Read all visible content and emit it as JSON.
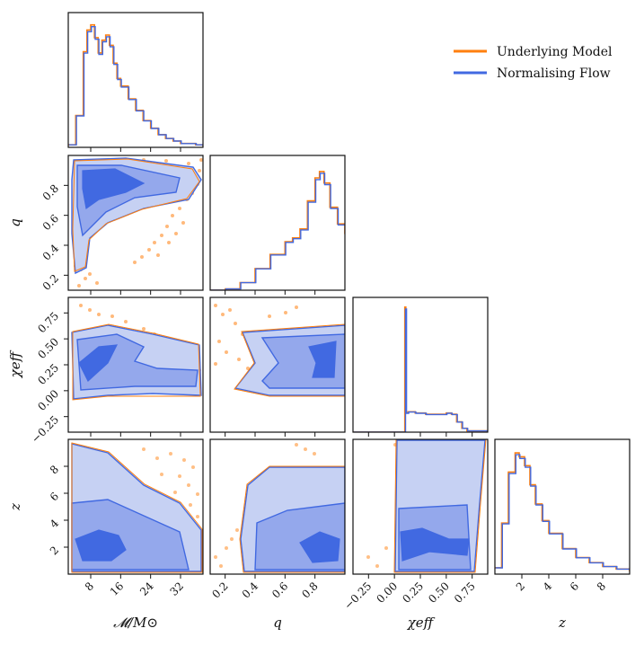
{
  "chart_data": {
    "type": "corner",
    "title": "",
    "parameters": [
      {
        "key": "mc",
        "label": "𝓜/M⊙",
        "range": [
          2,
          38
        ],
        "ticks": [
          8,
          16,
          24,
          32
        ],
        "tick_labels": [
          "8",
          "16",
          "24",
          "32"
        ]
      },
      {
        "key": "q",
        "label": "q",
        "range": [
          0.1,
          1.0
        ],
        "ticks": [
          0.2,
          0.4,
          0.6,
          0.8
        ],
        "tick_labels": [
          "0.2",
          "0.4",
          "0.6",
          "0.8"
        ]
      },
      {
        "key": "chi",
        "label": "χeff",
        "range": [
          -0.4,
          0.9
        ],
        "ticks": [
          -0.25,
          0.0,
          0.25,
          0.5,
          0.75
        ],
        "tick_labels": [
          "−0.25",
          "0.00",
          "0.25",
          "0.50",
          "0.75"
        ]
      },
      {
        "key": "z",
        "label": "z",
        "range": [
          0,
          10
        ],
        "ticks": [
          2,
          4,
          6,
          8
        ],
        "tick_labels": [
          "2",
          "4",
          "6",
          "8"
        ]
      }
    ],
    "y_tick_labels": {
      "q": [
        "0.2",
        "0.4",
        "0.6",
        "0.8"
      ],
      "chi": [
        "−0.25",
        "0.00",
        "0.25",
        "0.50",
        "0.75"
      ],
      "z": [
        "2",
        "4",
        "6",
        "8"
      ]
    },
    "series": [
      {
        "name": "Underlying Model",
        "color": "#ff7f0e"
      },
      {
        "name": "Normalising Flow",
        "color": "#4169e1"
      }
    ],
    "legend": {
      "position": "top-right",
      "entries": [
        "Underlying Model",
        "Normalising Flow"
      ]
    },
    "marginals": {
      "mc": {
        "x": [
          2,
          4,
          6,
          7,
          8,
          9,
          10,
          11,
          12,
          13,
          14,
          15,
          16,
          18,
          20,
          22,
          24,
          26,
          28,
          30,
          32,
          34,
          36,
          38
        ],
        "y": [
          0.02,
          0.25,
          0.75,
          0.92,
          0.96,
          0.86,
          0.74,
          0.84,
          0.88,
          0.8,
          0.66,
          0.54,
          0.48,
          0.38,
          0.29,
          0.21,
          0.15,
          0.1,
          0.07,
          0.05,
          0.03,
          0.03,
          0.02,
          0.01
        ]
      },
      "q": {
        "x": [
          0.1,
          0.2,
          0.3,
          0.4,
          0.5,
          0.6,
          0.65,
          0.7,
          0.75,
          0.8,
          0.83,
          0.86,
          0.9,
          0.95,
          1.0
        ],
        "y": [
          0.0,
          0.01,
          0.06,
          0.17,
          0.28,
          0.38,
          0.41,
          0.48,
          0.7,
          0.88,
          0.93,
          0.84,
          0.65,
          0.52,
          0.44
        ]
      },
      "chi": {
        "x": [
          -0.4,
          0.0,
          0.09,
          0.1,
          0.11,
          0.13,
          0.2,
          0.3,
          0.4,
          0.5,
          0.55,
          0.6,
          0.65,
          0.7,
          0.9
        ],
        "y": [
          0,
          0,
          0,
          0.98,
          0.15,
          0.16,
          0.15,
          0.14,
          0.14,
          0.15,
          0.14,
          0.08,
          0.03,
          0.01,
          0
        ]
      },
      "z": {
        "x": [
          0,
          0.5,
          1.0,
          1.5,
          1.8,
          2.2,
          2.6,
          3,
          3.5,
          4,
          5,
          6,
          7,
          8,
          9,
          10
        ],
        "y": [
          0.05,
          0.4,
          0.8,
          0.95,
          0.92,
          0.85,
          0.7,
          0.55,
          0.42,
          0.32,
          0.2,
          0.13,
          0.09,
          0.06,
          0.04,
          0.02
        ]
      }
    },
    "joint_levels": [
      "outer",
      "middle",
      "inner"
    ]
  }
}
